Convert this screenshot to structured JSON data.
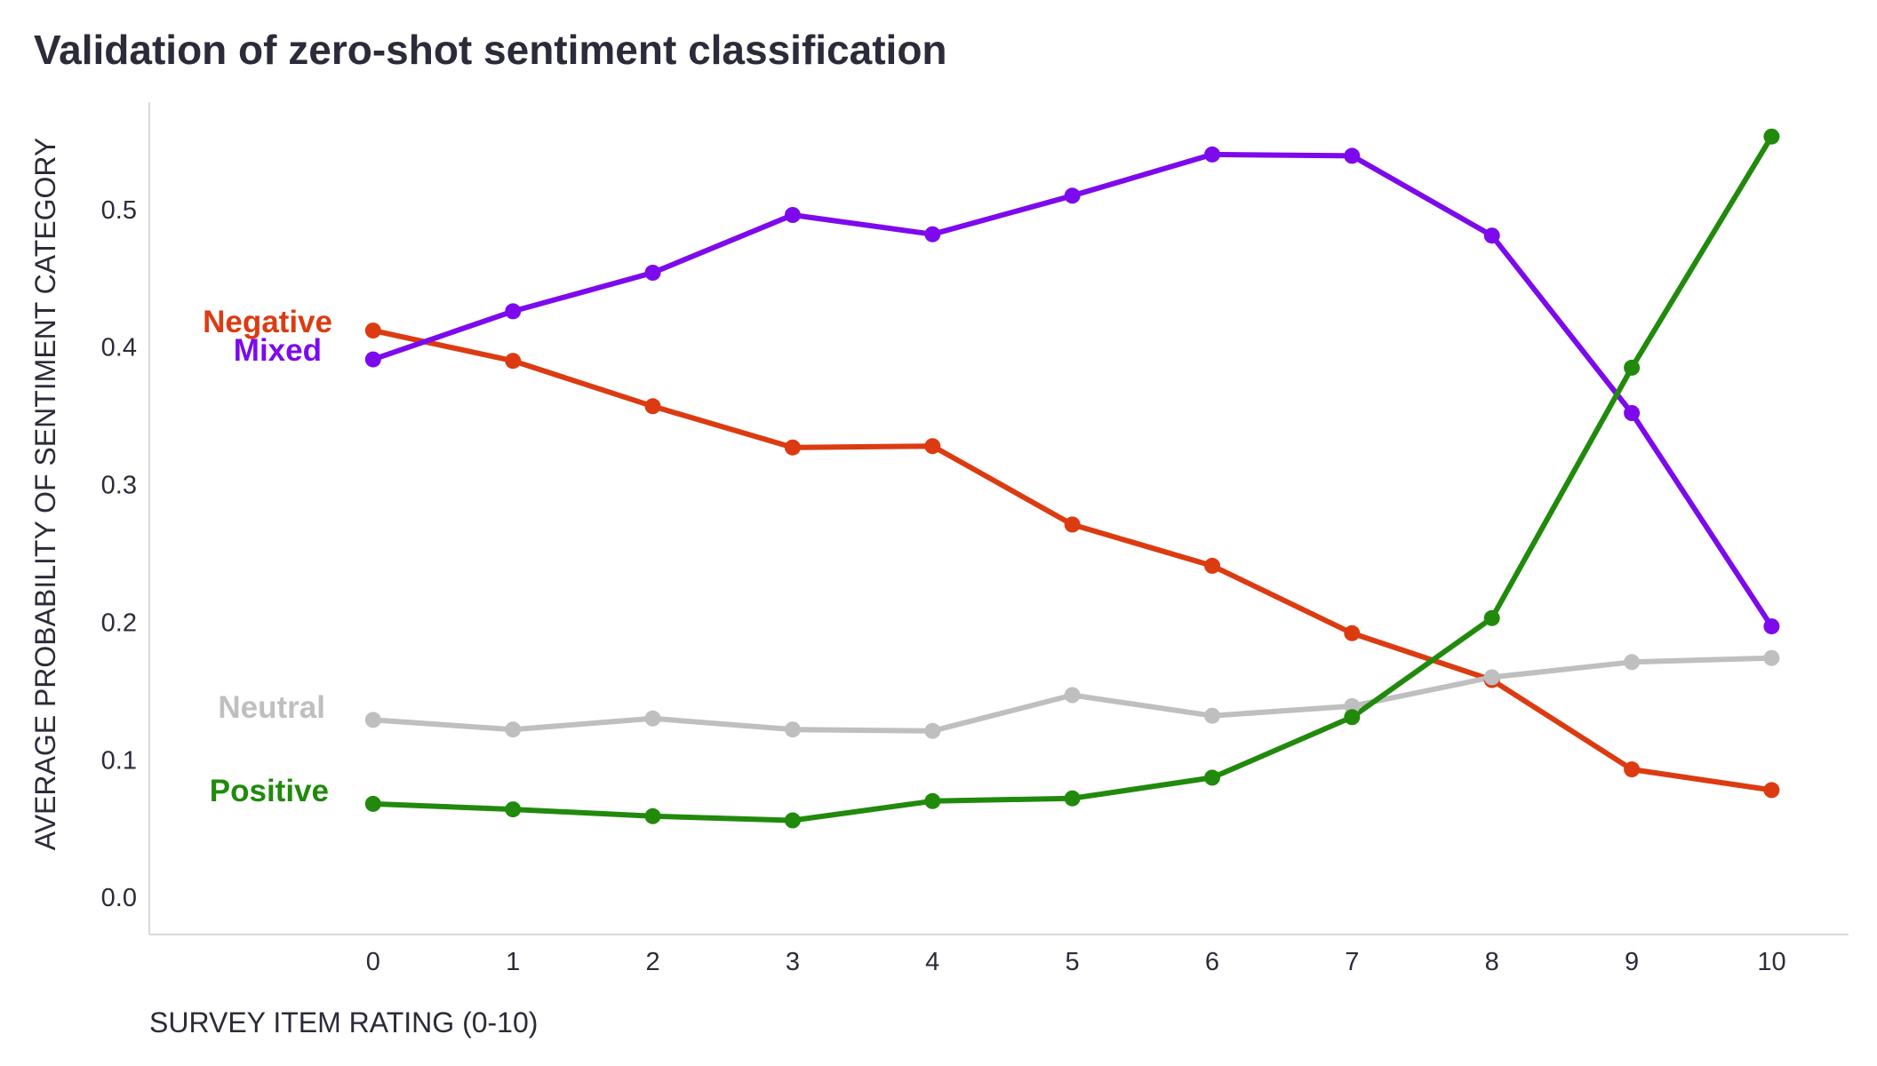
{
  "chart_data": {
    "type": "line",
    "title": "Validation of zero-shot sentiment classification",
    "xlabel": "SURVEY ITEM RATING (0-10)",
    "ylabel": "AVERAGE PROBABILITY OF SENTIMENT CATEGORY",
    "x": [
      0,
      1,
      2,
      3,
      4,
      5,
      6,
      7,
      8,
      9,
      10
    ],
    "xticks": [
      "0",
      "1",
      "2",
      "3",
      "4",
      "5",
      "6",
      "7",
      "8",
      "9",
      "10"
    ],
    "yticks": [
      "0.0",
      "0.1",
      "0.2",
      "0.3",
      "0.4",
      "0.5"
    ],
    "ylim": [
      -0.027,
      0.578
    ],
    "xlim": [
      -1.6,
      10.55
    ],
    "grid": false,
    "legend": "direct labels at left end of each line",
    "series": [
      {
        "name": "Negative",
        "color": "#dc3b12",
        "values": [
          0.412,
          0.39,
          0.357,
          0.327,
          0.328,
          0.271,
          0.241,
          0.192,
          0.158,
          0.093,
          0.078
        ]
      },
      {
        "name": "Mixed",
        "color": "#7d0aec",
        "values": [
          0.391,
          0.426,
          0.454,
          0.496,
          0.482,
          0.51,
          0.54,
          0.539,
          0.481,
          0.352,
          0.197
        ]
      },
      {
        "name": "Neutral",
        "color": "#bfbfbf",
        "values": [
          0.129,
          0.122,
          0.13,
          0.122,
          0.121,
          0.147,
          0.132,
          0.139,
          0.16,
          0.171,
          0.174
        ]
      },
      {
        "name": "Positive",
        "color": "#218a0c",
        "values": [
          0.068,
          0.064,
          0.059,
          0.056,
          0.07,
          0.072,
          0.087,
          0.131,
          0.203,
          0.385,
          0.553
        ]
      }
    ]
  }
}
